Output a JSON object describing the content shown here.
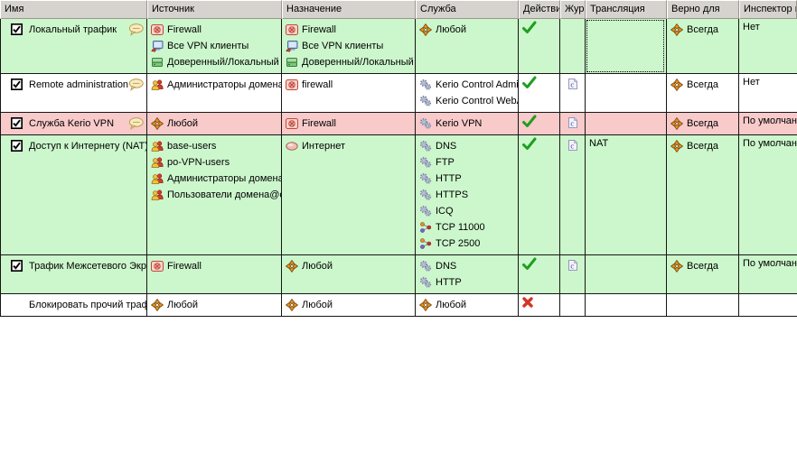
{
  "colors": {
    "row_green": "#ccf7cc",
    "row_pink": "#f8caca",
    "row_white": "#ffffff",
    "allow_check": "#1f9e1f",
    "deny_cross": "#d23527",
    "header_bg": "#d6d3ce"
  },
  "table": {
    "columns": [
      {
        "key": "name",
        "label": "Имя"
      },
      {
        "key": "source",
        "label": "Источник"
      },
      {
        "key": "destination",
        "label": "Назначение"
      },
      {
        "key": "service",
        "label": "Служба"
      },
      {
        "key": "action",
        "label": "Действие"
      },
      {
        "key": "log",
        "label": "Журнал"
      },
      {
        "key": "translation",
        "label": "Трансляция"
      },
      {
        "key": "valid",
        "label": "Верно для"
      },
      {
        "key": "inspector",
        "label": "Инспектор протокола"
      }
    ],
    "rows": [
      {
        "name": "Локальный трафик",
        "checked": true,
        "comment": true,
        "highlight": "green",
        "source": [
          {
            "icon": "firewall-icon",
            "label": "Firewall"
          },
          {
            "icon": "vpn-clients-icon",
            "label": "Все VPN клиенты"
          },
          {
            "icon": "trusted-local-icon",
            "label": "Доверенный/Локальный"
          }
        ],
        "destination": [
          {
            "icon": "firewall-icon",
            "label": "Firewall"
          },
          {
            "icon": "vpn-clients-icon",
            "label": "Все VPN клиенты"
          },
          {
            "icon": "trusted-local-icon",
            "label": "Доверенный/Локальный"
          }
        ],
        "service": [
          {
            "icon": "any-icon",
            "label": "Любой"
          }
        ],
        "action": "allow",
        "log": false,
        "translation": "",
        "translation_focused": true,
        "valid": {
          "icon": "always-icon",
          "label": "Всегда"
        },
        "inspector": "Нет"
      },
      {
        "name": "Remote administration",
        "checked": true,
        "comment": true,
        "highlight": "white",
        "source": [
          {
            "icon": "users-icon",
            "label": "Администраторы домена"
          }
        ],
        "destination": [
          {
            "icon": "firewall-icon",
            "label": "firewall"
          }
        ],
        "service": [
          {
            "icon": "service-gear-icon",
            "label": "Kerio Control Admin"
          },
          {
            "icon": "service-gear-icon",
            "label": "Kerio Control WebAdmin"
          }
        ],
        "action": "allow",
        "log": true,
        "translation": "",
        "translation_focused": false,
        "valid": {
          "icon": "always-icon",
          "label": "Всегда"
        },
        "inspector": "Нет"
      },
      {
        "name": "Служба Kerio VPN",
        "checked": true,
        "comment": true,
        "highlight": "pink",
        "source": [
          {
            "icon": "any-icon",
            "label": "Любой"
          }
        ],
        "destination": [
          {
            "icon": "firewall-icon",
            "label": "Firewall"
          }
        ],
        "service": [
          {
            "icon": "service-gear-icon",
            "label": "Kerio VPN"
          }
        ],
        "action": "allow",
        "log": true,
        "translation": "",
        "translation_focused": false,
        "valid": {
          "icon": "always-icon",
          "label": "Всегда"
        },
        "inspector": "По умолчанию"
      },
      {
        "name": "Доступ к Интернету (NAT)",
        "checked": true,
        "comment": false,
        "highlight": "green",
        "source": [
          {
            "icon": "users-icon",
            "label": "base-users"
          },
          {
            "icon": "users-icon",
            "label": "po-VPN-users"
          },
          {
            "icon": "users-icon",
            "label": "Администраторы домена"
          },
          {
            "icon": "users-icon",
            "label": "Пользователи домена@c"
          }
        ],
        "destination": [
          {
            "icon": "internet-icon",
            "label": "Интернет"
          }
        ],
        "service": [
          {
            "icon": "service-gear-icon",
            "label": "DNS"
          },
          {
            "icon": "service-gear-icon",
            "label": "FTP"
          },
          {
            "icon": "service-gear-icon",
            "label": "HTTP"
          },
          {
            "icon": "service-gear-icon",
            "label": "HTTPS"
          },
          {
            "icon": "service-gear-icon",
            "label": "ICQ"
          },
          {
            "icon": "port-icon",
            "label": "TCP 11000"
          },
          {
            "icon": "port-icon",
            "label": "TCP 2500"
          }
        ],
        "action": "allow",
        "log": true,
        "translation": "NAT",
        "translation_focused": false,
        "valid": {
          "icon": "always-icon",
          "label": "Всегда"
        },
        "inspector": "По умолчанию"
      },
      {
        "name": "Трафик Межсетевого Экрана",
        "checked": true,
        "comment": false,
        "highlight": "green",
        "source": [
          {
            "icon": "firewall-icon",
            "label": "Firewall"
          }
        ],
        "destination": [
          {
            "icon": "any-icon",
            "label": "Любой"
          }
        ],
        "service": [
          {
            "icon": "service-gear-icon",
            "label": "DNS"
          },
          {
            "icon": "service-gear-icon",
            "label": "HTTP"
          }
        ],
        "action": "allow",
        "log": true,
        "translation": "",
        "translation_focused": false,
        "valid": {
          "icon": "always-icon",
          "label": "Всегда"
        },
        "inspector": "По умолчанию"
      },
      {
        "name": "Блокировать прочий трафик",
        "checked": null,
        "comment": false,
        "highlight": "white",
        "source": [
          {
            "icon": "any-icon",
            "label": "Любой"
          }
        ],
        "destination": [
          {
            "icon": "any-icon",
            "label": "Любой"
          }
        ],
        "service": [
          {
            "icon": "any-icon",
            "label": "Любой"
          }
        ],
        "action": "deny",
        "log": false,
        "translation": "",
        "translation_focused": false,
        "valid": null,
        "inspector": ""
      }
    ]
  }
}
